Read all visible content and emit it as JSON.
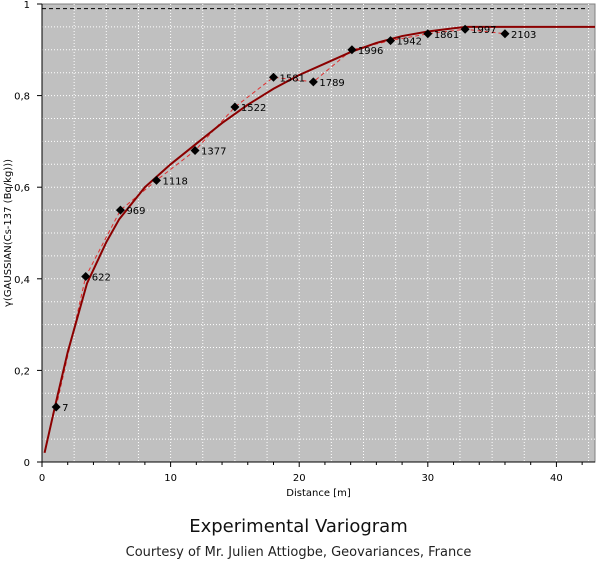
{
  "chart_data": {
    "type": "scatter",
    "title": "",
    "xlabel": "Distance [m]",
    "ylabel": "γ(GAUSSIAN(Cs-137 (Bq/kg)))",
    "xlim": [
      0,
      43
    ],
    "ylim": [
      0,
      1.0
    ],
    "x_ticks": [
      0,
      10,
      20,
      30,
      40
    ],
    "y_ticks": [
      0,
      0.2,
      0.4,
      0.6,
      0.8,
      1.0
    ],
    "x_tick_labels": [
      "0",
      "10",
      "20",
      "30",
      "40"
    ],
    "y_tick_labels": [
      "0",
      "0,2",
      "0,4",
      "0,6",
      "0,8",
      "1"
    ],
    "grid": true,
    "sill_line": 0.99,
    "series": [
      {
        "kind": "experimental",
        "points": [
          {
            "x": 1.1,
            "y": 0.12,
            "label": "7"
          },
          {
            "x": 3.4,
            "y": 0.405,
            "label": "622"
          },
          {
            "x": 6.1,
            "y": 0.55,
            "label": "969"
          },
          {
            "x": 8.9,
            "y": 0.615,
            "label": "1118"
          },
          {
            "x": 11.9,
            "y": 0.68,
            "label": "1377"
          },
          {
            "x": 15.0,
            "y": 0.775,
            "label": "1522"
          },
          {
            "x": 18.0,
            "y": 0.84,
            "label": "1581"
          },
          {
            "x": 21.1,
            "y": 0.83,
            "label": "1789"
          },
          {
            "x": 24.1,
            "y": 0.9,
            "label": "1996"
          },
          {
            "x": 27.1,
            "y": 0.92,
            "label": "1942"
          },
          {
            "x": 30.0,
            "y": 0.935,
            "label": "1861"
          },
          {
            "x": 32.9,
            "y": 0.945,
            "label": "1997"
          },
          {
            "x": 36.0,
            "y": 0.935,
            "label": "2103"
          }
        ]
      },
      {
        "kind": "model",
        "points": [
          {
            "x": 0.2,
            "y": 0.02
          },
          {
            "x": 0.6,
            "y": 0.07
          },
          {
            "x": 1.0,
            "y": 0.12
          },
          {
            "x": 1.5,
            "y": 0.18
          },
          {
            "x": 2.0,
            "y": 0.24
          },
          {
            "x": 2.5,
            "y": 0.29
          },
          {
            "x": 3.0,
            "y": 0.34
          },
          {
            "x": 3.5,
            "y": 0.39
          },
          {
            "x": 4.0,
            "y": 0.42
          },
          {
            "x": 5.0,
            "y": 0.48
          },
          {
            "x": 6.0,
            "y": 0.53
          },
          {
            "x": 7.0,
            "y": 0.565
          },
          {
            "x": 8.0,
            "y": 0.6
          },
          {
            "x": 9.0,
            "y": 0.625
          },
          {
            "x": 10.0,
            "y": 0.65
          },
          {
            "x": 12.0,
            "y": 0.695
          },
          {
            "x": 14.0,
            "y": 0.74
          },
          {
            "x": 16.0,
            "y": 0.78
          },
          {
            "x": 18.0,
            "y": 0.815
          },
          {
            "x": 20.0,
            "y": 0.845
          },
          {
            "x": 22.0,
            "y": 0.87
          },
          {
            "x": 24.0,
            "y": 0.895
          },
          {
            "x": 26.0,
            "y": 0.915
          },
          {
            "x": 28.0,
            "y": 0.93
          },
          {
            "x": 30.0,
            "y": 0.94
          },
          {
            "x": 32.0,
            "y": 0.947
          },
          {
            "x": 33.0,
            "y": 0.95
          },
          {
            "x": 36.0,
            "y": 0.95
          },
          {
            "x": 43.0,
            "y": 0.95
          }
        ]
      }
    ]
  },
  "caption": {
    "title": "Experimental Variogram",
    "subtitle": "Courtesy of Mr. Julien Attiogbe, Geovariances, France"
  },
  "colors": {
    "plot_bg": "#c0c0c0",
    "model_line": "#8b0000",
    "fit_line": "#e03030",
    "marker": "#000000",
    "grid": "#ffffff"
  }
}
